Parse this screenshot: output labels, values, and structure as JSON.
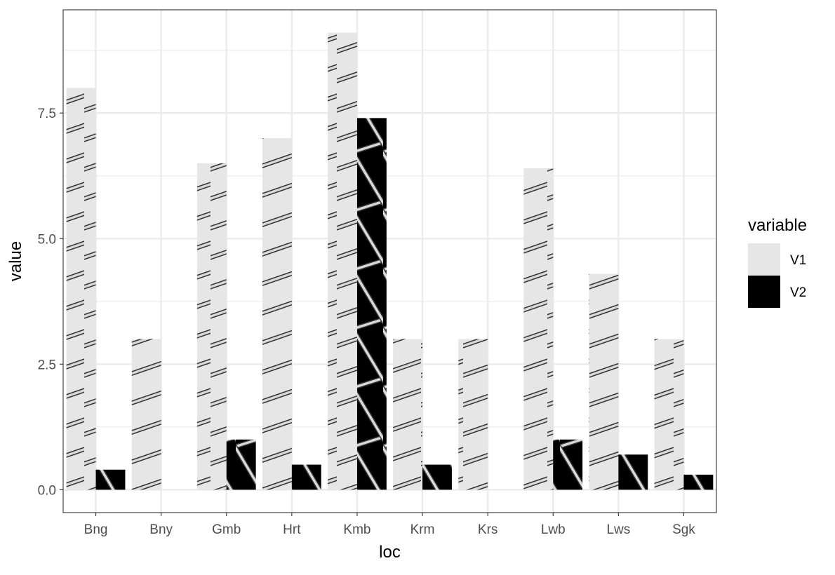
{
  "chart_data": {
    "type": "bar",
    "title": "",
    "xlabel": "loc",
    "ylabel": "value",
    "categories": [
      "Bng",
      "Bny",
      "Gmb",
      "Hrt",
      "Kmb",
      "Krm",
      "Krs",
      "Lwb",
      "Lws",
      "Sgk"
    ],
    "series": [
      {
        "name": "V1",
        "values": [
          8.0,
          3.0,
          6.5,
          7.0,
          9.1,
          3.0,
          3.0,
          6.4,
          4.3,
          3.0
        ],
        "color": "#e6e6e6",
        "pattern": "stripe"
      },
      {
        "name": "V2",
        "values": [
          0.4,
          0.0,
          1.0,
          0.5,
          7.4,
          0.5,
          0.0,
          1.0,
          0.7,
          0.3
        ],
        "color": "#000000",
        "pattern": "crosshatch"
      }
    ],
    "yticks": [
      "0.0",
      "2.5",
      "5.0",
      "7.5"
    ],
    "ytick_values": [
      0,
      2.5,
      5.0,
      7.5
    ],
    "ylim": [
      -0.455,
      9.555
    ],
    "grid": true,
    "legend": {
      "title": "variable",
      "position": "right"
    },
    "colors": {
      "panel_border": "#333333",
      "grid_major": "#ebebeb",
      "pattern_line": "#333333",
      "pattern_fill": "#d9d9d9"
    }
  }
}
